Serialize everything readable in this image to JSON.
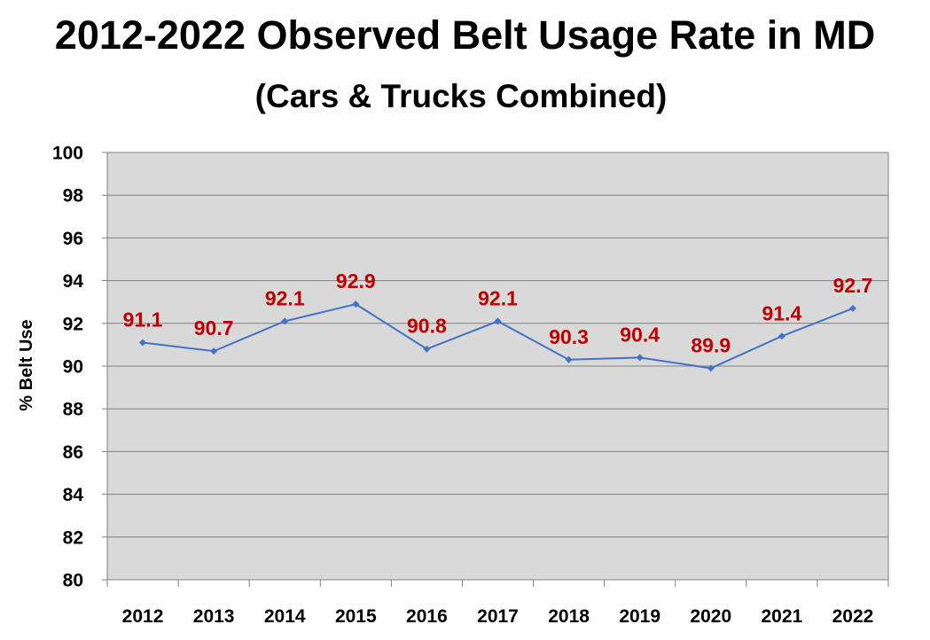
{
  "chart_data": {
    "type": "line",
    "title": "2012-2022 Observed Belt Usage Rate in MD",
    "subtitle": "(Cars & Trucks Combined)",
    "xlabel": "",
    "ylabel": "% Belt Use",
    "categories": [
      "2012",
      "2013",
      "2014",
      "2015",
      "2016",
      "2017",
      "2018",
      "2019",
      "2020",
      "2021",
      "2022"
    ],
    "series": [
      {
        "values": [
          91.1,
          90.7,
          92.1,
          92.9,
          90.8,
          92.1,
          90.3,
          90.4,
          89.9,
          91.4,
          92.7
        ]
      }
    ],
    "data_labels": [
      "91.1",
      "90.7",
      "92.1",
      "92.9",
      "90.8",
      "92.1",
      "90.3",
      "90.4",
      "89.9",
      "91.4",
      "92.7"
    ],
    "ylim": [
      80,
      100
    ],
    "yticks": [
      "80",
      "82",
      "84",
      "86",
      "88",
      "90",
      "92",
      "94",
      "96",
      "98",
      "100"
    ],
    "grid": true,
    "legend": "none",
    "colors": {
      "plot_background": "#d9d9d9",
      "line": "#4472c4",
      "data_label": "#c00000",
      "gridline": "#808080"
    }
  }
}
